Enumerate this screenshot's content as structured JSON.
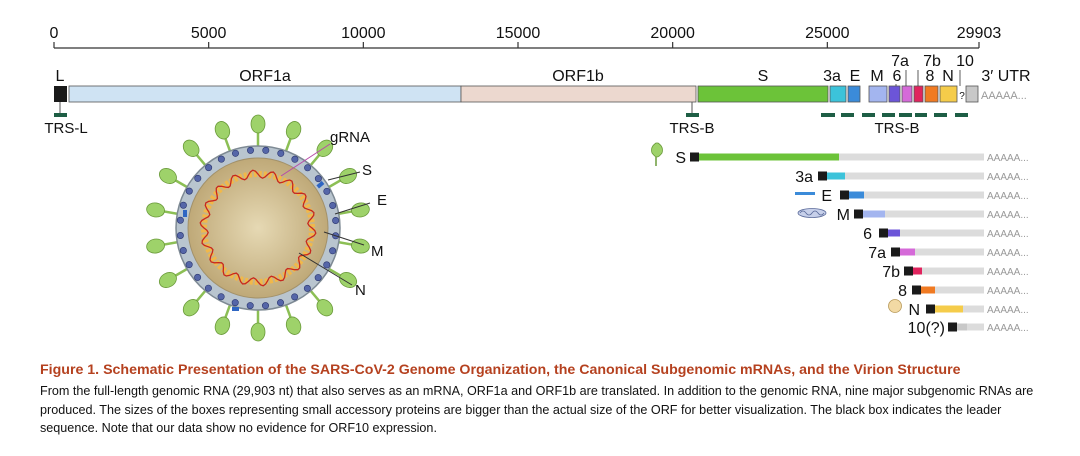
{
  "colors": {
    "ORF1a": "#cfe3f3",
    "ORF1b": "#ecd8cf",
    "S": "#6cc339",
    "3a": "#3cc3da",
    "E": "#3b8bd9",
    "M": "#a3b5ef",
    "6": "#6c55d8",
    "7a": "#d56ad8",
    "7b": "#e0245e",
    "8": "#f07a22",
    "N": "#f5cc4a",
    "10": "#c8c8c8",
    "leader": "#1a1a1a",
    "trs": "#1e5e45",
    "body": "#dcdcdc",
    "spike": "#9ed26a",
    "capsid": "#cdb98a",
    "rna": "#f1b84a",
    "caption_title": "#b5411f"
  },
  "axis": {
    "ticks": [
      {
        "value": 0,
        "label": "0"
      },
      {
        "value": 5000,
        "label": "5000"
      },
      {
        "value": 10000,
        "label": "10000"
      },
      {
        "value": 15000,
        "label": "15000"
      },
      {
        "value": 20000,
        "label": "20000"
      },
      {
        "value": 25000,
        "label": "25000"
      },
      {
        "value": 29903,
        "label": "29903"
      }
    ]
  },
  "genome": {
    "labels": {
      "L": "L",
      "ORF1a": "ORF1a",
      "ORF1b": "ORF1b",
      "S": "S",
      "3a": "3a",
      "E": "E",
      "M": "M",
      "6": "6",
      "7a": "7a",
      "7b": "7b",
      "8": "8",
      "N": "N",
      "10": "10",
      "utr": "3′ UTR",
      "q": "?",
      "polyA": "AAAAA..."
    },
    "trs_labels": {
      "L": "TRS-L",
      "B1": "TRS-B",
      "B2": "TRS-B"
    }
  },
  "virion": {
    "labels": {
      "grna": "gRNA",
      "s": "S",
      "e": "E",
      "m": "M",
      "n": "N"
    }
  },
  "sgrna": {
    "polyA": "AAAAA...",
    "rows": [
      {
        "label": "S",
        "color_key": "S"
      },
      {
        "label": "3a",
        "color_key": "3a"
      },
      {
        "label": "E",
        "color_key": "E"
      },
      {
        "label": "M",
        "color_key": "M"
      },
      {
        "label": "6",
        "color_key": "6"
      },
      {
        "label": "7a",
        "color_key": "7a"
      },
      {
        "label": "7b",
        "color_key": "7b"
      },
      {
        "label": "8",
        "color_key": "8"
      },
      {
        "label": "N",
        "color_key": "N"
      },
      {
        "label": "10(?)",
        "color_key": "10"
      }
    ]
  },
  "caption": {
    "title": "Figure 1. Schematic Presentation of the SARS-CoV-2 Genome Organization, the Canonical Subgenomic mRNAs, and the Virion Structure",
    "body": "From the full-length genomic RNA (29,903 nt) that also serves as an mRNA, ORF1a and ORF1b are translated. In addition to the genomic RNA, nine major subgenomic RNAs are produced. The sizes of the boxes representing small accessory proteins are bigger than the actual size of the ORF for better visualization. The black box indicates the leader sequence. Note that our data show no evidence for ORF10 expression."
  }
}
